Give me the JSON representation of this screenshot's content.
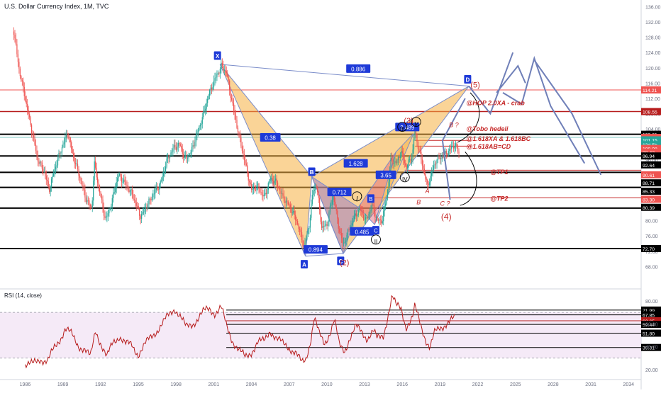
{
  "header": {
    "title": "U.S. Dollar Currency Index, 1M, TVC",
    "rsi_title": "RSI (14, close)"
  },
  "colors": {
    "candle_up": "#26a69a",
    "candle_down": "#ef5350",
    "rsi_line": "#b71c1c",
    "rsi_band": "#f3e5f5",
    "harmonic_orange": "#f5b041",
    "harmonic_purple": "#8e6cc9",
    "harmonic_red": "#e06070",
    "projection_blue": "#6f7fb8",
    "annotation_red": "#c62828",
    "point_label_bg": "#1e3ad8"
  },
  "chart_data": [
    {
      "type": "candlestick",
      "title": "U.S. Dollar Currency Index, 1M, TVC",
      "ylim": [
        64,
        137
      ],
      "y_scale": "linear",
      "x_ticks": [
        "1986",
        "1989",
        "1992",
        "1995",
        "1998",
        "2001",
        "2004",
        "2007",
        "2010",
        "2013",
        "2016",
        "2019",
        "2022",
        "2025",
        "2028",
        "2031",
        "2034"
      ],
      "y_ticks": [
        "68.00",
        "72.00",
        "76.00",
        "80.00",
        "84.00",
        "88.00",
        "92.00",
        "96.00",
        "100.00",
        "104.00",
        "108.00",
        "112.00",
        "116.00",
        "120.00",
        "124.00",
        "128.00",
        "132.00",
        "136.00"
      ],
      "price_path": [
        [
          1985.1,
          129.5
        ],
        [
          1985.5,
          120
        ],
        [
          1986.0,
          112
        ],
        [
          1986.5,
          104
        ],
        [
          1987.0,
          96
        ],
        [
          1987.5,
          93
        ],
        [
          1987.9,
          88
        ],
        [
          1988.4,
          94
        ],
        [
          1988.9,
          99
        ],
        [
          1989.4,
          103
        ],
        [
          1989.8,
          97
        ],
        [
          1990.3,
          92
        ],
        [
          1990.8,
          86
        ],
        [
          1991.3,
          83
        ],
        [
          1991.5,
          95
        ],
        [
          1991.9,
          88
        ],
        [
          1992.4,
          80
        ],
        [
          1992.9,
          85
        ],
        [
          1993.4,
          92
        ],
        [
          1993.9,
          90
        ],
        [
          1994.5,
          87
        ],
        [
          1995.2,
          81
        ],
        [
          1995.7,
          84
        ],
        [
          1996.2,
          87
        ],
        [
          1996.8,
          90
        ],
        [
          1997.3,
          96
        ],
        [
          1997.8,
          99
        ],
        [
          1998.3,
          100
        ],
        [
          1998.7,
          96
        ],
        [
          1999.2,
          98
        ],
        [
          1999.7,
          103
        ],
        [
          2000.2,
          108
        ],
        [
          2000.6,
          113
        ],
        [
          2001.1,
          117
        ],
        [
          2001.6,
          120.5
        ],
        [
          2002.0,
          119
        ],
        [
          2002.4,
          112
        ],
        [
          2002.9,
          104
        ],
        [
          2003.5,
          95
        ],
        [
          2004.0,
          88
        ],
        [
          2004.5,
          89
        ],
        [
          2005.0,
          86
        ],
        [
          2005.5,
          91
        ],
        [
          2006.0,
          90
        ],
        [
          2006.5,
          86
        ],
        [
          2007.0,
          84
        ],
        [
          2007.6,
          80
        ],
        [
          2008.2,
          73
        ],
        [
          2008.6,
          79
        ],
        [
          2008.9,
          88
        ],
        [
          2009.2,
          89
        ],
        [
          2009.6,
          78
        ],
        [
          2010.0,
          79
        ],
        [
          2010.5,
          87
        ],
        [
          2010.9,
          79
        ],
        [
          2011.3,
          73.5
        ],
        [
          2011.8,
          78
        ],
        [
          2012.2,
          81
        ],
        [
          2012.6,
          83
        ],
        [
          2013.1,
          80
        ],
        [
          2013.6,
          84
        ],
        [
          2014.0,
          80
        ],
        [
          2014.4,
          80
        ],
        [
          2014.8,
          87
        ],
        [
          2015.1,
          96
        ],
        [
          2015.5,
          95
        ],
        [
          2015.9,
          98
        ],
        [
          2016.3,
          94
        ],
        [
          2016.8,
          97
        ],
        [
          2016.99,
          103.5
        ],
        [
          2017.5,
          96
        ],
        [
          2018.0,
          89
        ],
        [
          2018.3,
          92
        ],
        [
          2018.7,
          96
        ],
        [
          2019.1,
          96.5
        ],
        [
          2019.6,
          98
        ],
        [
          2019.9,
          99
        ],
        [
          2020.2,
          100
        ],
        [
          2020.6,
          97
        ]
      ],
      "harmonic_points": [
        {
          "label": "X",
          "t": 2001.5,
          "v": 120.9
        },
        {
          "label": "A",
          "t": 2008.3,
          "v": 70.7
        },
        {
          "label": "B",
          "t": 2008.8,
          "v": 91.5
        },
        {
          "label": "C",
          "t": 2011.3,
          "v": 71.4
        },
        {
          "label": "D",
          "t": 2021.3,
          "v": 115.2
        }
      ],
      "ratios": [
        "0.886",
        "0.38",
        "1.628",
        "0.712",
        "0.894",
        "0.485",
        "3.65",
        "2.489"
      ],
      "wave_labels": [
        "(5)",
        "(3)",
        "(2)",
        "(4)",
        "III",
        "IV",
        "V",
        "I",
        "II",
        "B",
        "C",
        "A",
        "B ?",
        "C ?"
      ],
      "annotations": [
        "@HOP 2.0XA - crab",
        "@Tobo hedeli",
        "@1.618XA & 1.618BC",
        "@1.618AB=CD",
        "@TP1",
        "@TP2"
      ],
      "price_tags": [
        {
          "text": "114.21",
          "v": 114.21,
          "color": "#ef5350"
        },
        {
          "text": "108.55",
          "v": 108.55,
          "color": "#b71c1c"
        },
        {
          "text": "102.61",
          "v": 102.61,
          "color": "#000000"
        },
        {
          "text": "101.79",
          "v": 101.79,
          "color": "#ef5350"
        },
        {
          "text": "101.15",
          "v": 101.15,
          "color": "#26a69a"
        },
        {
          "text": "13d 5h",
          "v": 99.9,
          "color": "#26a69a"
        },
        {
          "text": "100.08",
          "v": 98.9,
          "color": "#ef5350"
        },
        {
          "text": "98.42",
          "v": 97.9,
          "color": "#ef5350"
        },
        {
          "text": "96.94",
          "v": 96.94,
          "color": "#000000"
        },
        {
          "text": "92.64",
          "v": 94.6,
          "color": "#000000"
        },
        {
          "text": "90.61",
          "v": 92.0,
          "color": "#ef5350"
        },
        {
          "text": "88.71",
          "v": 89.9,
          "color": "#000000"
        },
        {
          "text": "85.33",
          "v": 87.7,
          "color": "#000000"
        },
        {
          "text": "83.30",
          "v": 85.6,
          "color": "#ef5350"
        },
        {
          "text": "80.39",
          "v": 83.5,
          "color": "#000000"
        },
        {
          "text": "72.70",
          "v": 72.7,
          "color": "#000000"
        }
      ],
      "h_lines": [
        {
          "v": 114.21,
          "color": "#ef5350",
          "w": 1
        },
        {
          "v": 108.55,
          "color": "#b71c1c",
          "w": 1.5
        },
        {
          "v": 102.61,
          "color": "#000000",
          "w": 2
        },
        {
          "v": 101.79,
          "color": "#80cbc4",
          "w": 1
        },
        {
          "v": 96.94,
          "color": "#000000",
          "w": 2
        },
        {
          "v": 92.64,
          "color": "#000000",
          "w": 2
        },
        {
          "v": 88.71,
          "color": "#000000",
          "w": 2
        },
        {
          "v": 83.3,
          "color": "#000000",
          "w": 2
        },
        {
          "v": 72.7,
          "color": "#000000",
          "w": 2
        }
      ]
    },
    {
      "type": "line",
      "title": "RSI (14, close)",
      "ylim": [
        15,
        88
      ],
      "y_ticks": [
        "20.00",
        "40.00",
        "60.00",
        "80.00"
      ],
      "values": [
        [
          1986.0,
          25
        ],
        [
          1986.6,
          24
        ],
        [
          1987.2,
          30
        ],
        [
          1987.8,
          27
        ],
        [
          1988.3,
          38
        ],
        [
          1988.8,
          48
        ],
        [
          1989.2,
          56
        ],
        [
          1989.7,
          50
        ],
        [
          1990.2,
          42
        ],
        [
          1990.7,
          38
        ],
        [
          1991.2,
          30
        ],
        [
          1991.6,
          55
        ],
        [
          1992.0,
          44
        ],
        [
          1992.5,
          30
        ],
        [
          1993.0,
          44
        ],
        [
          1993.5,
          50
        ],
        [
          1994.0,
          42
        ],
        [
          1994.5,
          41
        ],
        [
          1995.0,
          34
        ],
        [
          1995.5,
          41
        ],
        [
          1996.0,
          48
        ],
        [
          1996.5,
          55
        ],
        [
          1997.0,
          61
        ],
        [
          1997.5,
          68
        ],
        [
          1997.9,
          74
        ],
        [
          1998.3,
          68
        ],
        [
          1998.8,
          56
        ],
        [
          1999.3,
          60
        ],
        [
          1999.8,
          66
        ],
        [
          2000.2,
          70
        ],
        [
          2000.7,
          73
        ],
        [
          2001.1,
          70
        ],
        [
          2001.6,
          74
        ],
        [
          2002.0,
          58
        ],
        [
          2002.5,
          46
        ],
        [
          2003.0,
          37
        ],
        [
          2003.5,
          30
        ],
        [
          2004.0,
          36
        ],
        [
          2004.5,
          44
        ],
        [
          2005.0,
          44
        ],
        [
          2005.5,
          55
        ],
        [
          2006.0,
          47
        ],
        [
          2006.5,
          42
        ],
        [
          2007.0,
          40
        ],
        [
          2007.5,
          35
        ],
        [
          2008.0,
          25
        ],
        [
          2008.3,
          28
        ],
        [
          2008.7,
          46
        ],
        [
          2009.0,
          66
        ],
        [
          2009.4,
          50
        ],
        [
          2009.8,
          42
        ],
        [
          2010.2,
          52
        ],
        [
          2010.6,
          64
        ],
        [
          2011.0,
          40
        ],
        [
          2011.4,
          36
        ],
        [
          2011.8,
          48
        ],
        [
          2012.3,
          57
        ],
        [
          2012.7,
          53
        ],
        [
          2013.2,
          48
        ],
        [
          2013.7,
          54
        ],
        [
          2014.0,
          46
        ],
        [
          2014.5,
          50
        ],
        [
          2014.9,
          70
        ],
        [
          2015.2,
          84
        ],
        [
          2015.5,
          75
        ],
        [
          2015.9,
          74
        ],
        [
          2016.3,
          58
        ],
        [
          2016.8,
          64
        ],
        [
          2017.0,
          74
        ],
        [
          2017.4,
          62
        ],
        [
          2017.9,
          46
        ],
        [
          2018.2,
          38
        ],
        [
          2018.6,
          52
        ],
        [
          2019.0,
          57
        ],
        [
          2019.4,
          60
        ],
        [
          2019.8,
          62
        ],
        [
          2020.2,
          64
        ]
      ],
      "levels": [
        {
          "text": "71.99",
          "v": 71.99,
          "color": "#000000"
        },
        {
          "text": "67.85",
          "v": 67.85,
          "color": "#000000"
        },
        {
          "text": "62.65",
          "v": 62.65,
          "color": "#b71c1c"
        },
        {
          "text": "59.44",
          "v": 59.44,
          "color": "#000000"
        },
        {
          "text": "51.80",
          "v": 51.8,
          "color": "#000000"
        },
        {
          "text": "39.31",
          "v": 39.31,
          "color": "#000000"
        }
      ]
    }
  ]
}
